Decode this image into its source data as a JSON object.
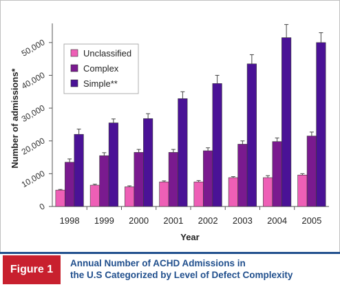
{
  "figure": {
    "badge": "Figure 1",
    "caption_line1": "Annual Number of ACHD Admissions in",
    "caption_line2": "the U.S Categorized by Level of Defect Complexity"
  },
  "colors": {
    "unclassified": "#ee5fb6",
    "complex": "#7a1a8f",
    "simple": "#4a1296",
    "accent": "#1f4e8c",
    "badge": "#c8202e"
  },
  "chart_data": {
    "type": "bar",
    "title": "",
    "xlabel": "Year",
    "ylabel": "Number of admissions*",
    "ylim": [
      0,
      55000
    ],
    "yticks": [
      0,
      10000,
      20000,
      30000,
      40000,
      50000
    ],
    "ytick_labels": [
      "0",
      "10,000",
      "20,000",
      "30,000",
      "40,000",
      "50,000"
    ],
    "categories": [
      "1998",
      "1999",
      "2000",
      "2001",
      "2002",
      "2003",
      "2004",
      "2005"
    ],
    "legend_position": "top-left",
    "grid": false,
    "error_bars": true,
    "series": [
      {
        "name": "Unclassified",
        "color": "#ee5fb6",
        "values": [
          5000,
          6500,
          6000,
          7500,
          7500,
          8800,
          8800,
          9600
        ],
        "errors": [
          200,
          300,
          300,
          300,
          400,
          300,
          600,
          400
        ]
      },
      {
        "name": "Complex",
        "color": "#7a1a8f",
        "values": [
          13500,
          15500,
          16500,
          16500,
          17000,
          19000,
          19800,
          21500
        ],
        "errors": [
          1000,
          900,
          900,
          900,
          900,
          1000,
          1100,
          1200
        ]
      },
      {
        "name": "Simple**",
        "color": "#4a1296",
        "values": [
          22000,
          25500,
          26800,
          32900,
          37500,
          43500,
          51500,
          50000
        ],
        "errors": [
          1600,
          1200,
          1500,
          2100,
          2500,
          2800,
          4000,
          3000
        ]
      }
    ]
  }
}
